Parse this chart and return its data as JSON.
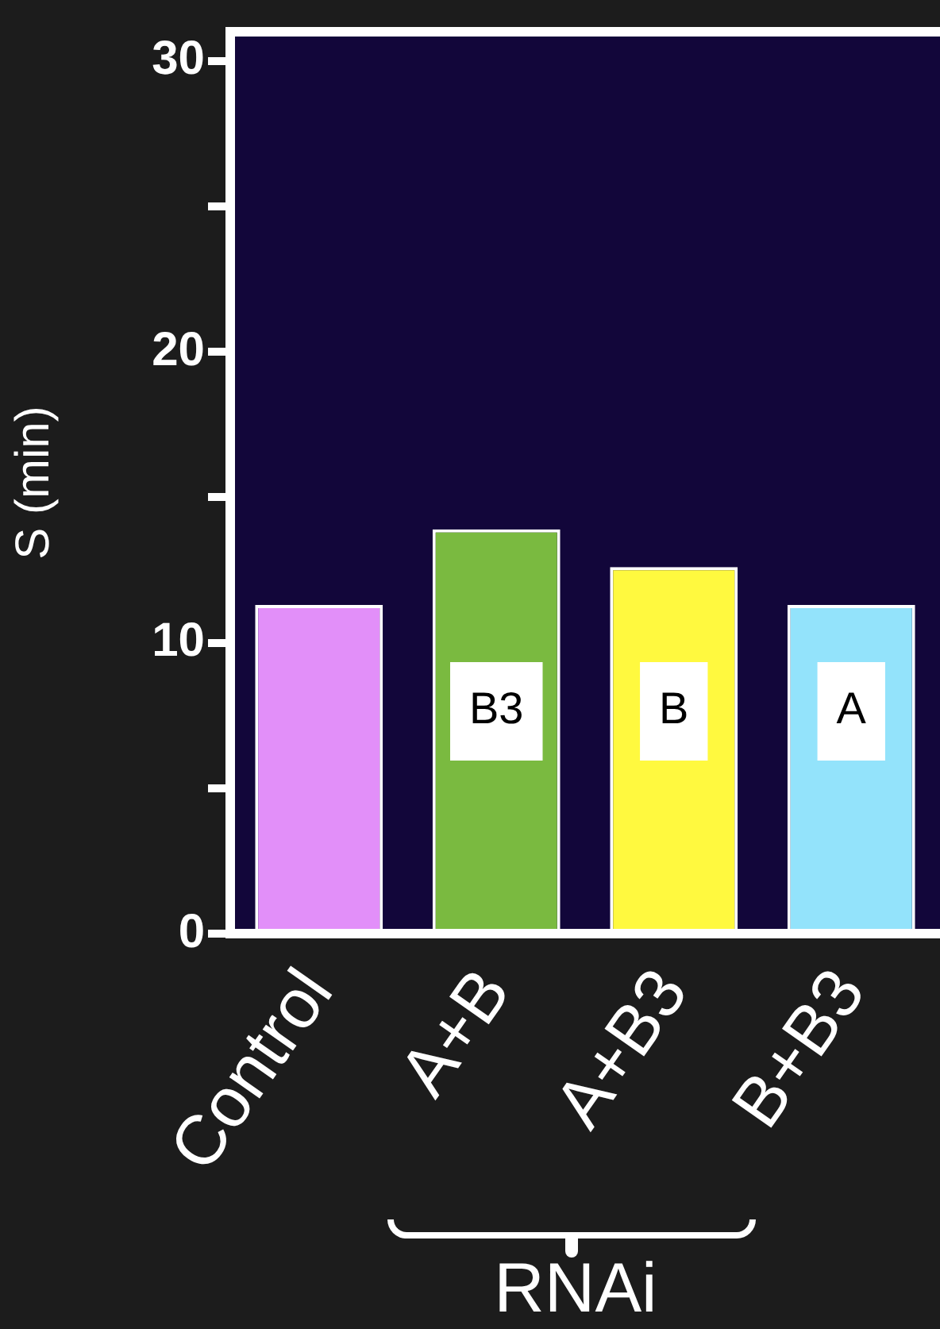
{
  "chart_data": {
    "type": "bar",
    "ylabel": "S (min)",
    "categories": [
      "Control",
      "A+B",
      "A+B3",
      "B+B3"
    ],
    "values": [
      11.3,
      13.9,
      12.6,
      11.3
    ],
    "colors": [
      "#e28ff9",
      "#7aba40",
      "#fff93f",
      "#93e3fb"
    ],
    "ylim": [
      0,
      31
    ],
    "yticks": [
      0,
      {
        "value": 5,
        "label": null
      },
      10,
      {
        "value": 15,
        "label": null
      },
      20,
      {
        "value": 25,
        "label": null
      },
      30
    ],
    "annotations": [
      "B3",
      "B",
      "A",
      "RNAi"
    ]
  }
}
